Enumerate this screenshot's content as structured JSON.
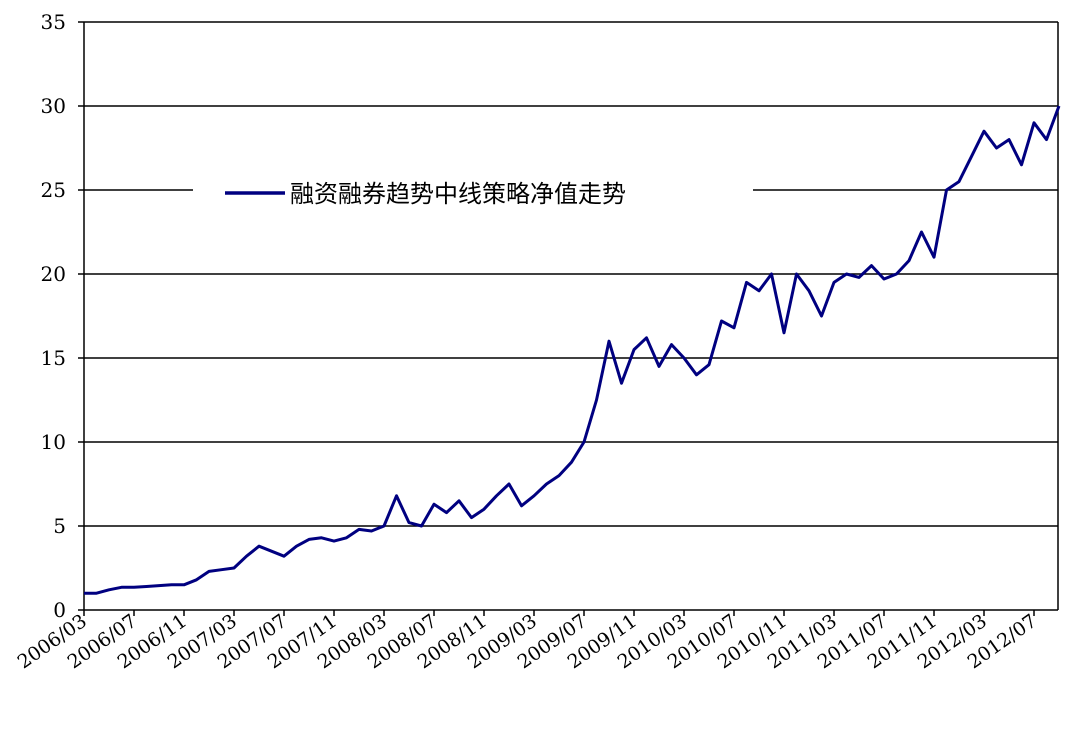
{
  "chart_data": {
    "type": "line",
    "title": "",
    "xlabel": "",
    "ylabel": "",
    "ylim": [
      0,
      35
    ],
    "yticks": [
      0,
      5,
      10,
      15,
      20,
      25,
      30,
      35
    ],
    "xticks": [
      "2006/03",
      "2006/07",
      "2006/11",
      "2007/03",
      "2007/07",
      "2007/11",
      "2008/03",
      "2008/07",
      "2008/11",
      "2009/03",
      "2009/07",
      "2009/11",
      "2010/03",
      "2010/07",
      "2010/11",
      "2011/03",
      "2011/07",
      "2011/11",
      "2012/03",
      "2012/07"
    ],
    "grid": "horizontal",
    "legend": "top-left inside",
    "series": [
      {
        "name": "融资融券趋势中线策略净值走势",
        "color": "#000080",
        "points": [
          [
            "2006/03",
            1.0
          ],
          [
            "2006/04",
            1.0
          ],
          [
            "2006/05",
            1.2
          ],
          [
            "2006/06",
            1.35
          ],
          [
            "2006/07",
            1.35
          ],
          [
            "2006/08",
            1.4
          ],
          [
            "2006/09",
            1.45
          ],
          [
            "2006/10",
            1.5
          ],
          [
            "2006/11",
            1.5
          ],
          [
            "2006/12",
            1.8
          ],
          [
            "2007/01",
            2.3
          ],
          [
            "2007/02",
            2.4
          ],
          [
            "2007/03",
            2.5
          ],
          [
            "2007/04",
            3.2
          ],
          [
            "2007/05",
            3.8
          ],
          [
            "2007/06",
            3.5
          ],
          [
            "2007/07",
            3.2
          ],
          [
            "2007/08",
            3.8
          ],
          [
            "2007/09",
            4.2
          ],
          [
            "2007/10",
            4.3
          ],
          [
            "2007/11",
            4.1
          ],
          [
            "2007/12",
            4.3
          ],
          [
            "2008/01",
            4.8
          ],
          [
            "2008/02",
            4.7
          ],
          [
            "2008/03",
            5.0
          ],
          [
            "2008/04",
            6.8
          ],
          [
            "2008/05",
            5.2
          ],
          [
            "2008/06",
            5.0
          ],
          [
            "2008/07",
            6.3
          ],
          [
            "2008/08",
            5.8
          ],
          [
            "2008/09",
            6.5
          ],
          [
            "2008/10",
            5.5
          ],
          [
            "2008/11",
            6.0
          ],
          [
            "2008/12",
            6.8
          ],
          [
            "2009/01",
            7.5
          ],
          [
            "2009/02",
            6.2
          ],
          [
            "2009/03",
            6.8
          ],
          [
            "2009/04",
            7.5
          ],
          [
            "2009/05",
            8.0
          ],
          [
            "2009/06",
            8.8
          ],
          [
            "2009/07",
            10.0
          ],
          [
            "2009/08",
            12.5
          ],
          [
            "2009/09",
            16.0
          ],
          [
            "2009/10",
            13.5
          ],
          [
            "2009/11",
            15.5
          ],
          [
            "2009/12",
            16.2
          ],
          [
            "2010/01",
            14.5
          ],
          [
            "2010/02",
            15.8
          ],
          [
            "2010/03",
            15.0
          ],
          [
            "2010/04",
            14.0
          ],
          [
            "2010/05",
            14.6
          ],
          [
            "2010/06",
            17.2
          ],
          [
            "2010/07",
            16.8
          ],
          [
            "2010/08",
            19.5
          ],
          [
            "2010/09",
            19.0
          ],
          [
            "2010/10",
            20.0
          ],
          [
            "2010/11",
            16.5
          ],
          [
            "2010/12",
            20.0
          ],
          [
            "2011/01",
            19.0
          ],
          [
            "2011/02",
            17.5
          ],
          [
            "2011/03",
            19.5
          ],
          [
            "2011/04",
            20.0
          ],
          [
            "2011/05",
            19.8
          ],
          [
            "2011/06",
            20.5
          ],
          [
            "2011/07",
            19.7
          ],
          [
            "2011/08",
            20.0
          ],
          [
            "2011/09",
            20.8
          ],
          [
            "2011/10",
            22.5
          ],
          [
            "2011/11",
            21.0
          ],
          [
            "2011/12",
            25.0
          ],
          [
            "2012/01",
            25.5
          ],
          [
            "2012/02",
            27.0
          ],
          [
            "2012/03",
            28.5
          ],
          [
            "2012/04",
            27.5
          ],
          [
            "2012/05",
            28.0
          ],
          [
            "2012/06",
            26.5
          ],
          [
            "2012/07",
            29.0
          ],
          [
            "2012/08",
            28.0
          ],
          [
            "2012/09",
            30.0
          ]
        ]
      }
    ]
  }
}
